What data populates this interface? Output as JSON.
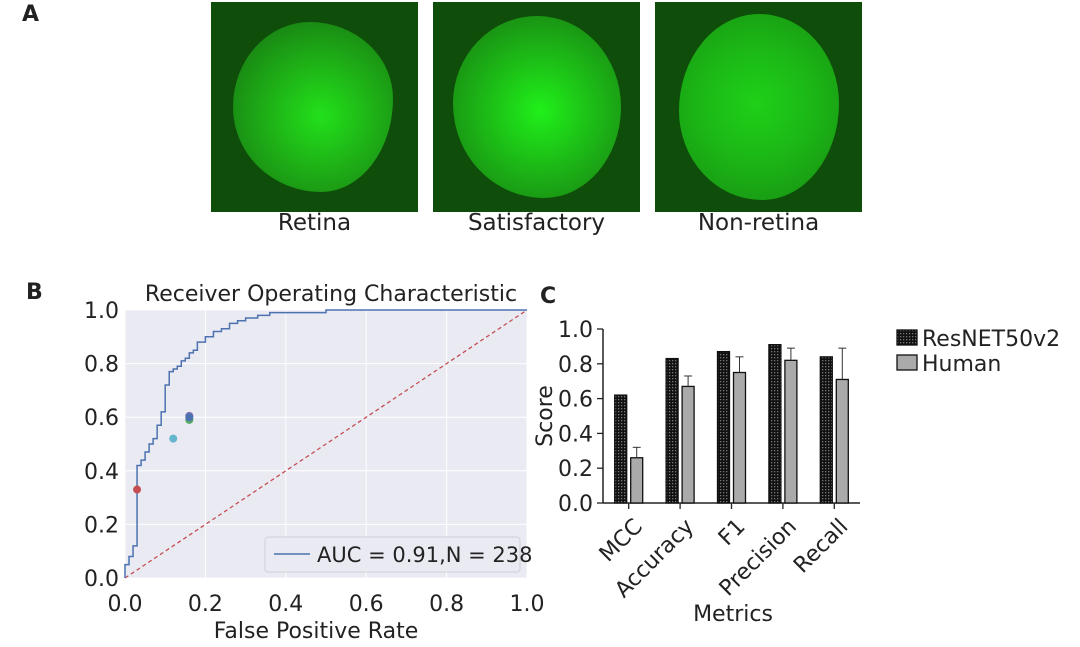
{
  "panel_a": {
    "letter": "A",
    "images": [
      {
        "caption": "Retina"
      },
      {
        "caption": "Satisfactory"
      },
      {
        "caption": "Non-retina"
      }
    ]
  },
  "panel_b": {
    "letter": "B"
  },
  "panel_c": {
    "letter": "C"
  },
  "chart_data": [
    {
      "type": "line",
      "title": "Receiver Operating Characteristic",
      "xlabel": "False Positive Rate",
      "ylabel": "",
      "xlim": [
        0,
        1
      ],
      "ylim": [
        0,
        1
      ],
      "x_ticks": [
        "0.0",
        "0.2",
        "0.4",
        "0.6",
        "0.8",
        "1.0"
      ],
      "y_ticks": [
        "0.0",
        "0.2",
        "0.4",
        "0.6",
        "0.8",
        "1.0"
      ],
      "grid": true,
      "legend_position": "bottom-right",
      "series": [
        {
          "name": "AUC = 0.91,N = 238",
          "color": "#4c72b0",
          "x": [
            0,
            0,
            0.01,
            0.01,
            0.02,
            0.02,
            0.03,
            0.03,
            0.04,
            0.04,
            0.05,
            0.05,
            0.06,
            0.06,
            0.07,
            0.07,
            0.08,
            0.08,
            0.09,
            0.09,
            0.1,
            0.1,
            0.11,
            0.11,
            0.12,
            0.12,
            0.13,
            0.13,
            0.14,
            0.14,
            0.15,
            0.15,
            0.16,
            0.16,
            0.17,
            0.17,
            0.18,
            0.18,
            0.2,
            0.2,
            0.22,
            0.22,
            0.24,
            0.24,
            0.26,
            0.26,
            0.28,
            0.28,
            0.3,
            0.3,
            0.33,
            0.33,
            0.36,
            0.36,
            0.42,
            0.42,
            0.5,
            0.5,
            0.52,
            0.52,
            0.6,
            0.6,
            0.65,
            0.65,
            0.75,
            0.75,
            1.0
          ],
          "y": [
            0,
            0.05,
            0.05,
            0.08,
            0.08,
            0.12,
            0.12,
            0.42,
            0.42,
            0.44,
            0.44,
            0.47,
            0.47,
            0.5,
            0.5,
            0.52,
            0.52,
            0.57,
            0.57,
            0.62,
            0.62,
            0.72,
            0.72,
            0.77,
            0.77,
            0.78,
            0.78,
            0.79,
            0.79,
            0.81,
            0.81,
            0.82,
            0.82,
            0.84,
            0.84,
            0.85,
            0.85,
            0.88,
            0.88,
            0.9,
            0.9,
            0.92,
            0.92,
            0.93,
            0.93,
            0.95,
            0.95,
            0.96,
            0.96,
            0.97,
            0.97,
            0.98,
            0.98,
            0.99,
            0.99,
            0.99,
            0.99,
            1.0,
            1.0,
            1.0,
            1.0,
            1.0,
            1.0,
            1.0,
            1.0,
            1.0,
            1.0
          ]
        },
        {
          "name": "",
          "style": "dashed",
          "color": "#c44e52",
          "x": [
            0,
            1
          ],
          "y": [
            0,
            1
          ]
        }
      ],
      "points": [
        {
          "x": 0.03,
          "y": 0.33,
          "color": "#c44e52"
        },
        {
          "x": 0.12,
          "y": 0.52,
          "color": "#64b5cd"
        },
        {
          "x": 0.16,
          "y": 0.59,
          "color": "#55a868"
        },
        {
          "x": 0.16,
          "y": 0.605,
          "color": "#8172b2"
        },
        {
          "x": 0.16,
          "y": 0.6,
          "color": "#4c72b0"
        }
      ]
    },
    {
      "type": "bar",
      "title": "",
      "xlabel": "Metrics",
      "ylabel": "Score",
      "ylim": [
        0,
        1
      ],
      "y_ticks": [
        "0.0",
        "0.2",
        "0.4",
        "0.6",
        "0.8",
        "1.0"
      ],
      "categories": [
        "MCC",
        "Accuracy",
        "F1",
        "Precision",
        "Recall"
      ],
      "legend_position": "right",
      "series": [
        {
          "name": "ResNET50v2",
          "values": [
            0.62,
            0.83,
            0.87,
            0.91,
            0.84
          ],
          "errors": [
            0,
            0,
            0,
            0,
            0
          ],
          "color": "#222222"
        },
        {
          "name": "Human",
          "values": [
            0.26,
            0.67,
            0.75,
            0.82,
            0.71
          ],
          "errors": [
            0.06,
            0.06,
            0.09,
            0.07,
            0.18
          ],
          "color": "#aaaaaa"
        }
      ]
    }
  ]
}
